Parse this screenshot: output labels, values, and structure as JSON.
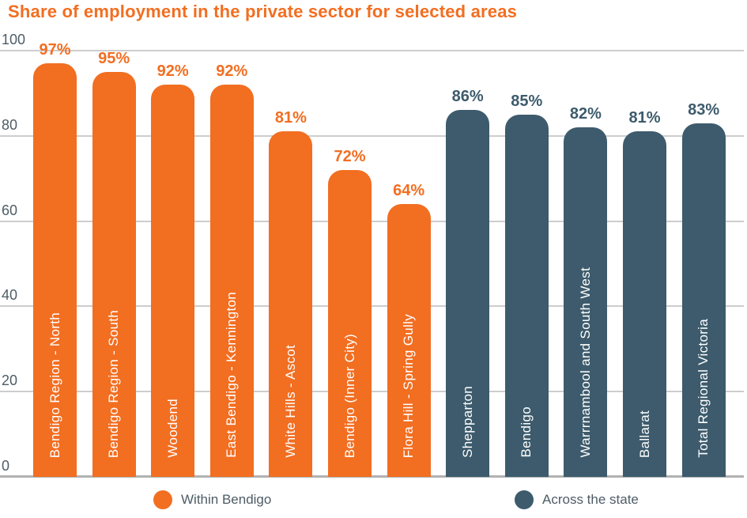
{
  "title": "Share of employment in the private sector for selected areas",
  "colors": {
    "orange": "#F26E21",
    "slate": "#3D5B6C",
    "axis_text": "#4E5C66",
    "gridline": "#CDCDCD",
    "axis_line": "#B2B2B2",
    "background": "#FFFFFF"
  },
  "chart_data": {
    "type": "bar",
    "title": "Share of employment in the private sector for selected areas",
    "xlabel": "",
    "ylabel": "",
    "ylim": [
      0,
      100
    ],
    "yticks": [
      0,
      20,
      40,
      60,
      80,
      100
    ],
    "grid": true,
    "legend_position": "bottom",
    "series": [
      {
        "name": "Within Bendigo",
        "color": "#F26E21"
      },
      {
        "name": "Across the state",
        "color": "#3D5B6C"
      }
    ],
    "bars": [
      {
        "label": "Bendigo Region - North",
        "value": 97,
        "value_label": "97%",
        "series": "Within Bendigo"
      },
      {
        "label": "Bendigo Region - South",
        "value": 95,
        "value_label": "95%",
        "series": "Within Bendigo"
      },
      {
        "label": "Woodend",
        "value": 92,
        "value_label": "92%",
        "series": "Within Bendigo"
      },
      {
        "label": "East Bendigo - Kennington",
        "value": 92,
        "value_label": "92%",
        "series": "Within Bendigo"
      },
      {
        "label": "White Hills - Ascot",
        "value": 81,
        "value_label": "81%",
        "series": "Within Bendigo"
      },
      {
        "label": "Bendigo (Inner City)",
        "value": 72,
        "value_label": "72%",
        "series": "Within Bendigo"
      },
      {
        "label": "Flora Hill - Spring Gully",
        "value": 64,
        "value_label": "64%",
        "series": "Within Bendigo"
      },
      {
        "label": "Shepparton",
        "value": 86,
        "value_label": "86%",
        "series": "Across the state"
      },
      {
        "label": "Bendigo",
        "value": 85,
        "value_label": "85%",
        "series": "Across the state"
      },
      {
        "label": "Warrrnambool and South West",
        "value": 82,
        "value_label": "82%",
        "series": "Across the state"
      },
      {
        "label": "Ballarat",
        "value": 81,
        "value_label": "81%",
        "series": "Across the state"
      },
      {
        "label": "Total Regional Victoria",
        "value": 83,
        "value_label": "83%",
        "series": "Across the state"
      }
    ]
  },
  "legend": {
    "items": [
      {
        "label": "Within Bendigo",
        "color": "#F26E21"
      },
      {
        "label": "Across the state",
        "color": "#3D5B6C"
      }
    ]
  }
}
